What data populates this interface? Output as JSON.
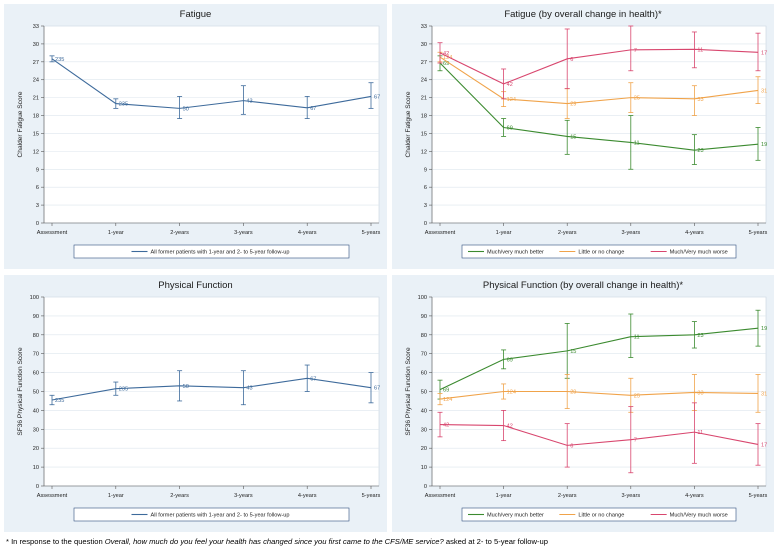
{
  "footnote": {
    "prefix": "* In response to the question ",
    "question": "Overall, how much do you feel your health has changed since you first came to the CFS/ME service?",
    "suffix": " asked at 2- to 5-year follow-up"
  },
  "colors": {
    "panel_bg": "#eaf1f7",
    "plot_bg": "#ffffff",
    "overall": "#3d6a9b",
    "better": "#3b8a2f",
    "nochange": "#f0a34a",
    "worse": "#d8466e",
    "grid": "#dde6ee",
    "legend_border": "#2f4f7f"
  },
  "chart_data": [
    {
      "type": "line",
      "title": "Fatigue",
      "ylabel": "Chalder Fatigue Score",
      "xlabel": "",
      "ylim": [
        0,
        33
      ],
      "yticks": [
        0,
        3,
        6,
        9,
        12,
        15,
        18,
        21,
        24,
        27,
        30,
        33
      ],
      "categories": [
        "Assessment",
        "1-year",
        "2-years",
        "3-years",
        "4-years",
        "5-years"
      ],
      "series": [
        {
          "name": "All former patients with 1-year and 2- to 5-year follow-up",
          "color_key": "overall",
          "values": [
            27.5,
            20.0,
            19.2,
            20.5,
            19.3,
            21.2
          ],
          "ci_low": [
            27.0,
            19.2,
            17.5,
            18.2,
            17.5,
            19.2
          ],
          "ci_high": [
            28.0,
            20.8,
            21.2,
            23.0,
            21.2,
            23.5
          ],
          "labels": [
            "235",
            "235",
            "50",
            "43",
            "67",
            "67"
          ]
        }
      ]
    },
    {
      "type": "line",
      "title": "Fatigue (by overall change in health)*",
      "ylabel": "Chalder Fatigue Score",
      "xlabel": "",
      "ylim": [
        0,
        33
      ],
      "yticks": [
        0,
        3,
        6,
        9,
        12,
        15,
        18,
        21,
        24,
        27,
        30,
        33
      ],
      "categories": [
        "Assessment",
        "1-year",
        "2-years",
        "3-years",
        "4-years",
        "5-years"
      ],
      "series": [
        {
          "name": "Much/very much better",
          "color_key": "better",
          "values": [
            26.8,
            16.0,
            14.5,
            13.5,
            12.2,
            13.2
          ],
          "ci_low": [
            25.5,
            14.5,
            11.5,
            9.0,
            9.8,
            10.5
          ],
          "ci_high": [
            28.0,
            17.5,
            17.2,
            18.0,
            14.8,
            16.0
          ],
          "labels": [
            "69",
            "69",
            "15",
            "11",
            "23",
            "19"
          ]
        },
        {
          "name": "Little or no change",
          "color_key": "nochange",
          "values": [
            27.8,
            20.8,
            20.0,
            21.0,
            20.8,
            22.2
          ],
          "ci_low": [
            27.0,
            19.5,
            17.5,
            18.5,
            18.0,
            20.0
          ],
          "ci_high": [
            28.6,
            22.0,
            22.5,
            23.5,
            23.0,
            24.5
          ],
          "labels": [
            "124",
            "124",
            "29",
            "25",
            "33",
            "31"
          ]
        },
        {
          "name": "Much/Very much worse",
          "color_key": "worse",
          "values": [
            28.5,
            23.3,
            27.5,
            29.0,
            29.1,
            28.6
          ],
          "ci_low": [
            26.8,
            20.8,
            22.5,
            25.5,
            26.0,
            25.5
          ],
          "ci_high": [
            30.2,
            25.8,
            32.5,
            33.0,
            32.0,
            31.8
          ],
          "labels": [
            "42",
            "42",
            "6",
            "7",
            "11",
            "17"
          ]
        }
      ]
    },
    {
      "type": "line",
      "title": "Physical Function",
      "ylabel": "SF36 Physical Function Score",
      "xlabel": "",
      "ylim": [
        0,
        100
      ],
      "yticks": [
        0,
        10,
        20,
        30,
        40,
        50,
        60,
        70,
        80,
        90,
        100
      ],
      "categories": [
        "Assessment",
        "1-year",
        "2-years",
        "3-years",
        "4-years",
        "5-years"
      ],
      "series": [
        {
          "name": "All former patients with 1-year and 2- to 5-year follow-up",
          "color_key": "overall",
          "values": [
            45.5,
            51.5,
            53.0,
            52.0,
            57.0,
            52.0
          ],
          "ci_low": [
            43.0,
            48.0,
            45.0,
            43.0,
            50.0,
            44.0
          ],
          "ci_high": [
            48.0,
            55.0,
            61.0,
            61.0,
            64.0,
            60.0
          ],
          "labels": [
            "235",
            "235",
            "50",
            "43",
            "67",
            "67"
          ]
        }
      ]
    },
    {
      "type": "line",
      "title": "Physical Function (by overall change in health)*",
      "ylabel": "SF36 Physical Function Score",
      "xlabel": "",
      "ylim": [
        0,
        100
      ],
      "yticks": [
        0,
        10,
        20,
        30,
        40,
        50,
        60,
        70,
        80,
        90,
        100
      ],
      "categories": [
        "Assessment",
        "1-year",
        "2-years",
        "3-years",
        "4-years",
        "5-years"
      ],
      "series": [
        {
          "name": "Much/very much better",
          "color_key": "better",
          "values": [
            51.0,
            67.0,
            71.5,
            79.0,
            80.0,
            83.5
          ],
          "ci_low": [
            46.0,
            62.0,
            57.0,
            68.0,
            73.0,
            74.0
          ],
          "ci_high": [
            56.0,
            72.0,
            86.0,
            91.0,
            87.0,
            93.0
          ],
          "labels": [
            "69",
            "69",
            "15",
            "11",
            "23",
            "19"
          ]
        },
        {
          "name": "Little or no change",
          "color_key": "nochange",
          "values": [
            46.0,
            50.0,
            50.0,
            48.0,
            49.5,
            49.0
          ],
          "ci_low": [
            43.0,
            46.0,
            41.0,
            39.0,
            40.0,
            39.0
          ],
          "ci_high": [
            49.0,
            54.0,
            59.0,
            57.0,
            59.0,
            59.0
          ],
          "labels": [
            "124",
            "124",
            "29",
            "25",
            "33",
            "31"
          ]
        },
        {
          "name": "Much/Very much worse",
          "color_key": "worse",
          "values": [
            32.5,
            32.0,
            21.5,
            24.5,
            28.5,
            22.0
          ],
          "ci_low": [
            26.0,
            24.0,
            10.0,
            7.0,
            12.0,
            11.0
          ],
          "ci_high": [
            39.0,
            40.0,
            33.0,
            42.0,
            44.0,
            33.0
          ],
          "labels": [
            "42",
            "42",
            "6",
            "7",
            "11",
            "17"
          ]
        }
      ]
    }
  ]
}
